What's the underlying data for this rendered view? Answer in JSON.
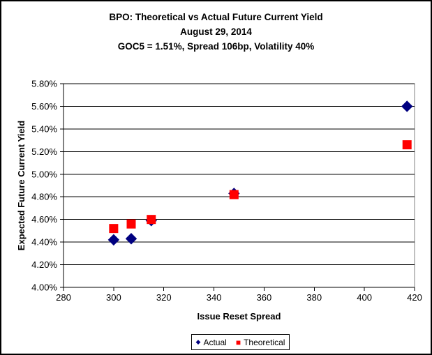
{
  "chart_data": {
    "type": "scatter",
    "title": "BPO: Theoretical vs Actual Future Current Yield",
    "subtitle": "August 29, 2014",
    "subtitle2": "GOC5 = 1.51%, Spread 106bp, Volatility 40%",
    "xlabel": "Issue Reset Spread",
    "ylabel": "Expected Future Current Yield",
    "xlim": [
      280,
      420
    ],
    "ylim": [
      4.0,
      5.8
    ],
    "x_ticks": [
      {
        "v": 280,
        "label": "280"
      },
      {
        "v": 300,
        "label": "300"
      },
      {
        "v": 320,
        "label": "320"
      },
      {
        "v": 340,
        "label": "340"
      },
      {
        "v": 360,
        "label": "360"
      },
      {
        "v": 380,
        "label": "380"
      },
      {
        "v": 400,
        "label": "400"
      },
      {
        "v": 420,
        "label": "420"
      }
    ],
    "y_ticks": [
      {
        "v": 5.8,
        "label": "5.80%"
      },
      {
        "v": 5.6,
        "label": "5.60%"
      },
      {
        "v": 5.4,
        "label": "5.40%"
      },
      {
        "v": 5.2,
        "label": "5.20%"
      },
      {
        "v": 5.0,
        "label": "5.00%"
      },
      {
        "v": 4.8,
        "label": "4.80%"
      },
      {
        "v": 4.6,
        "label": "4.60%"
      },
      {
        "v": 4.4,
        "label": "4.40%"
      },
      {
        "v": 4.2,
        "label": "4.20%"
      },
      {
        "v": 4.0,
        "label": "4.00%"
      }
    ],
    "grid": "horizontal",
    "legend_position": "bottom",
    "series": [
      {
        "name": "Actual",
        "marker": "diamond",
        "color": "#000080",
        "points": [
          [
            300,
            4.42
          ],
          [
            307,
            4.43
          ],
          [
            315,
            4.59
          ],
          [
            348,
            4.83
          ],
          [
            417,
            5.6
          ]
        ]
      },
      {
        "name": "Theoretical",
        "marker": "square",
        "color": "#FF0000",
        "points": [
          [
            300,
            4.52
          ],
          [
            307,
            4.56
          ],
          [
            315,
            4.6
          ],
          [
            348,
            4.82
          ],
          [
            417,
            5.26
          ]
        ]
      }
    ],
    "markers": {
      "diamond": "◆",
      "square": "■"
    },
    "colors": {
      "plot_border": "#808080",
      "gridline": "#000000",
      "axis": "#000000",
      "background": "#FFFFFF"
    }
  }
}
